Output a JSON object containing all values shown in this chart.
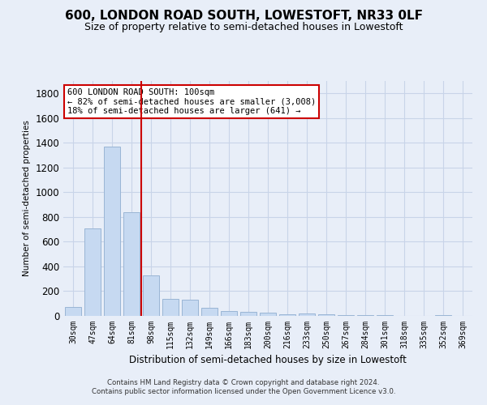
{
  "title": "600, LONDON ROAD SOUTH, LOWESTOFT, NR33 0LF",
  "subtitle": "Size of property relative to semi-detached houses in Lowestoft",
  "xlabel": "Distribution of semi-detached houses by size in Lowestoft",
  "ylabel": "Number of semi-detached properties",
  "annotation_title": "600 LONDON ROAD SOUTH: 100sqm",
  "annotation_line1": "← 82% of semi-detached houses are smaller (3,008)",
  "annotation_line2": "18% of semi-detached houses are larger (641) →",
  "footer1": "Contains HM Land Registry data © Crown copyright and database right 2024.",
  "footer2": "Contains public sector information licensed under the Open Government Licence v3.0.",
  "categories": [
    "30sqm",
    "47sqm",
    "64sqm",
    "81sqm",
    "98sqm",
    "115sqm",
    "132sqm",
    "149sqm",
    "166sqm",
    "183sqm",
    "200sqm",
    "216sqm",
    "233sqm",
    "250sqm",
    "267sqm",
    "284sqm",
    "301sqm",
    "318sqm",
    "335sqm",
    "352sqm",
    "369sqm"
  ],
  "values": [
    75,
    710,
    1370,
    840,
    330,
    140,
    130,
    65,
    40,
    35,
    25,
    15,
    20,
    10,
    5,
    5,
    5,
    0,
    0,
    5,
    0
  ],
  "bar_color": "#c6d9f1",
  "bar_edge_color": "#9ab5d5",
  "marker_index": 4,
  "marker_color": "#cc0000",
  "ylim": [
    0,
    1900
  ],
  "yticks": [
    0,
    200,
    400,
    600,
    800,
    1000,
    1200,
    1400,
    1600,
    1800
  ],
  "grid_color": "#c8d4e8",
  "background_color": "#e8eef8",
  "annotation_box_color": "#ffffff",
  "annotation_box_edge": "#cc0000",
  "title_fontsize": 11,
  "subtitle_fontsize": 9
}
